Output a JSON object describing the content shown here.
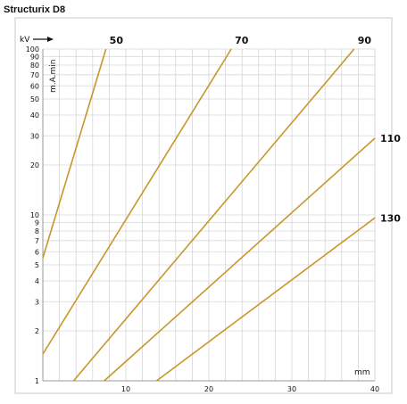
{
  "chart_data": {
    "type": "line",
    "title": "Structurix D8",
    "xlabel": "mm",
    "ylabel": "m.A.min",
    "series_label": "kV",
    "xlim": [
      0,
      40
    ],
    "ylim": [
      1,
      100
    ],
    "y_scale": "log",
    "x_ticks": [
      "10",
      "20",
      "30",
      "40"
    ],
    "y_ticks": [
      "1",
      "2",
      "3",
      "4",
      "5",
      "6",
      "7",
      "8",
      "9",
      "10",
      "20",
      "30",
      "40",
      "50",
      "60",
      "70",
      "80",
      "90",
      "100"
    ],
    "grid": true,
    "line_color": "#c8962a",
    "series": [
      {
        "name": "50",
        "points": [
          [
            0,
            5.5
          ],
          [
            7.6,
            100
          ]
        ]
      },
      {
        "name": "70",
        "points": [
          [
            0,
            1.45
          ],
          [
            22.7,
            100
          ]
        ]
      },
      {
        "name": "90",
        "points": [
          [
            3.7,
            1
          ],
          [
            37.5,
            100
          ]
        ]
      },
      {
        "name": "110",
        "points": [
          [
            7.4,
            1
          ],
          [
            40,
            29
          ]
        ]
      },
      {
        "name": "130",
        "points": [
          [
            13.7,
            1
          ],
          [
            40,
            9.6
          ]
        ]
      }
    ]
  }
}
